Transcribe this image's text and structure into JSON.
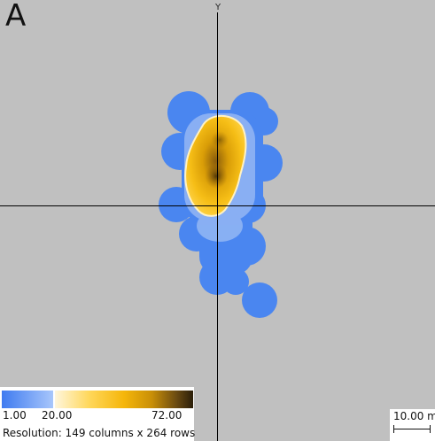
{
  "panel": {
    "letter": "A",
    "y_axis_label": "Y"
  },
  "legend": {
    "min": "1.00",
    "mid": "20.00",
    "max": "72.00",
    "resolution": "Resolution: 149 columns x 264 rows",
    "colors": {
      "low_blue": "#3f7bf0",
      "light_blue": "#a8c6fb",
      "pale_yellow": "#fff6dc",
      "gold": "#f5b60a",
      "dark_brown": "#2a1e0a"
    }
  },
  "scale_bar": {
    "label": "10.00 m"
  },
  "colors": {
    "background": "#c0c0c0",
    "axis": "#000000",
    "blue_zone": "#4a86f0",
    "gold_zone": "#f2b410"
  }
}
